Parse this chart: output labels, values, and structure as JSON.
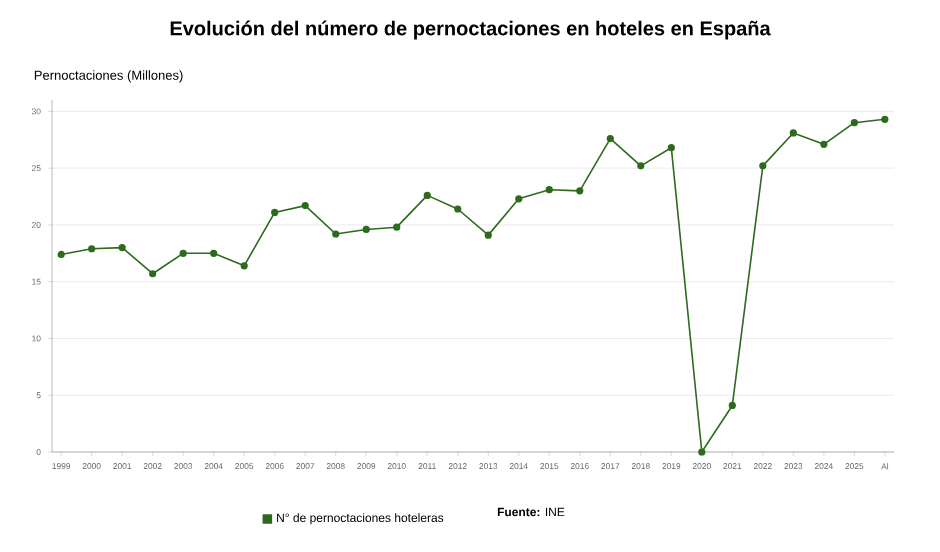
{
  "chart_data": {
    "type": "line",
    "title": "Evolución del número de pernoctaciones en hoteles en España",
    "ylabel": "Pernoctaciones (Millones)",
    "categories": [
      "1999",
      "2000",
      "2001",
      "2002",
      "2003",
      "2004",
      "2005",
      "2006",
      "2007",
      "2008",
      "2009",
      "2010",
      "2011",
      "2012",
      "2013",
      "2014",
      "2015",
      "2016",
      "2017",
      "2018",
      "2019",
      "2020",
      "2021",
      "2022",
      "2023",
      "2024",
      "2025",
      "Al"
    ],
    "series": [
      {
        "name": "N° de pernoctaciones hoteleras",
        "color": "#2d6a1e",
        "values": [
          17.4,
          17.9,
          18.0,
          15.7,
          17.5,
          17.5,
          16.4,
          21.1,
          21.7,
          19.2,
          19.6,
          19.8,
          22.6,
          21.4,
          19.1,
          22.3,
          23.1,
          23.0,
          27.6,
          25.2,
          26.8,
          0,
          4.1,
          25.2,
          28.1,
          27.1,
          29.0,
          29.3
        ]
      }
    ],
    "ylim": [
      0,
      31
    ],
    "yticks": [
      0,
      5,
      10,
      15,
      20,
      25,
      30
    ],
    "grid": "y",
    "legend": "bottom",
    "marker": "circle",
    "line_style": "solid",
    "annotations": [
      "**Fuente:** INE"
    ]
  }
}
